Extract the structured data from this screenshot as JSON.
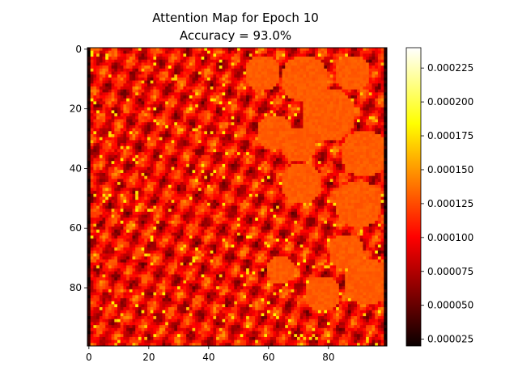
{
  "chart_data": {
    "type": "heatmap",
    "title": "Attention Map for Epoch 10",
    "subtitle": "Accuracy = 93.0%",
    "xlabel": "",
    "ylabel": "",
    "grid_size": [
      100,
      100
    ],
    "xlim": [
      -0.5,
      99.5
    ],
    "ylim": [
      99.5,
      -0.5
    ],
    "y_inverted": true,
    "x_ticks": [
      0,
      20,
      40,
      60,
      80
    ],
    "y_ticks": [
      0,
      20,
      40,
      60,
      80
    ],
    "colormap": "hot",
    "value_range": [
      2e-05,
      0.00024
    ],
    "colorbar_ticks": [
      "0.000025",
      "0.000050",
      "0.000075",
      "0.000100",
      "0.000125",
      "0.000150",
      "0.000175",
      "0.000200",
      "0.000225"
    ],
    "colorbar_values": [
      2.5e-05,
      5e-05,
      7.5e-05,
      0.0001,
      0.000125,
      0.00015,
      0.000175,
      0.0002,
      0.000225
    ],
    "grid": false,
    "description_values": {
      "left_region_typical": 0.0001,
      "right_blob_typical": 0.00013,
      "streak_peak": 0.00018,
      "edge_min": 2e-05
    }
  }
}
